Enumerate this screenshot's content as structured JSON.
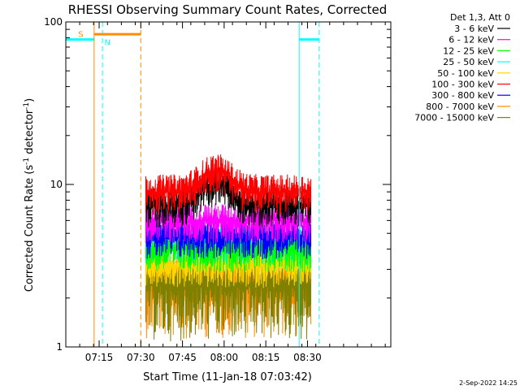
{
  "chart_data": {
    "type": "line",
    "title": "RHESSI Observing Summary Count Rates, Corrected",
    "xlabel": "Start Time (11-Jan-18 07:03:42)",
    "ylabel_main": "Corrected Count Rate (s",
    "ylabel_sup1": "-1",
    "ylabel_mid": " detector",
    "ylabel_sup2": "-1",
    "ylabel_end": ")",
    "y_scale": "log",
    "ylim": [
      1,
      100
    ],
    "xlim_minutes": [
      7.05,
      9.0
    ],
    "x_ticks": [
      {
        "label": "07:15",
        "value": 7.25
      },
      {
        "label": "07:30",
        "value": 7.5
      },
      {
        "label": "07:45",
        "value": 7.75
      },
      {
        "label": "08:00",
        "value": 8.0
      },
      {
        "label": "08:15",
        "value": 8.25
      },
      {
        "label": "08:30",
        "value": 8.5
      }
    ],
    "y_ticks": [
      {
        "label": "1",
        "value": 1
      },
      {
        "label": "10",
        "value": 10
      },
      {
        "label": "100",
        "value": 100
      }
    ],
    "legend_title": "Det 1,3, Att 0",
    "legend_position": "top-right, outside plot",
    "series": [
      {
        "name": "3 - 6 keV",
        "color": "#000000",
        "level": 7.5
      },
      {
        "name": "6 - 12 keV",
        "color": "#ff00ff",
        "level": 6.0
      },
      {
        "name": "12 - 25 keV",
        "color": "#00ff00",
        "level": 4.0
      },
      {
        "name": "25 - 50 keV",
        "color": "#00ffff",
        "level": 4.4
      },
      {
        "name": "50 - 100 keV",
        "color": "#ffd700",
        "level": 3.2
      },
      {
        "name": "100 - 300 keV",
        "color": "#ff0000",
        "level": 9.0
      },
      {
        "name": "300 - 800 keV",
        "color": "#0000ff",
        "level": 4.8
      },
      {
        "name": "800 - 7000 keV",
        "color": "#ff8c00",
        "level": 2.5
      },
      {
        "name": "7000 - 15000 keV",
        "color": "#808000",
        "level": 2.4
      }
    ],
    "data_window_hours": [
      7.53,
      8.52
    ],
    "annotations": [
      {
        "label": "S",
        "color": "#ff8c00"
      },
      {
        "label": "N",
        "color": "#00ffff"
      }
    ],
    "footer_date": "2-Sep-2022 14:25"
  }
}
